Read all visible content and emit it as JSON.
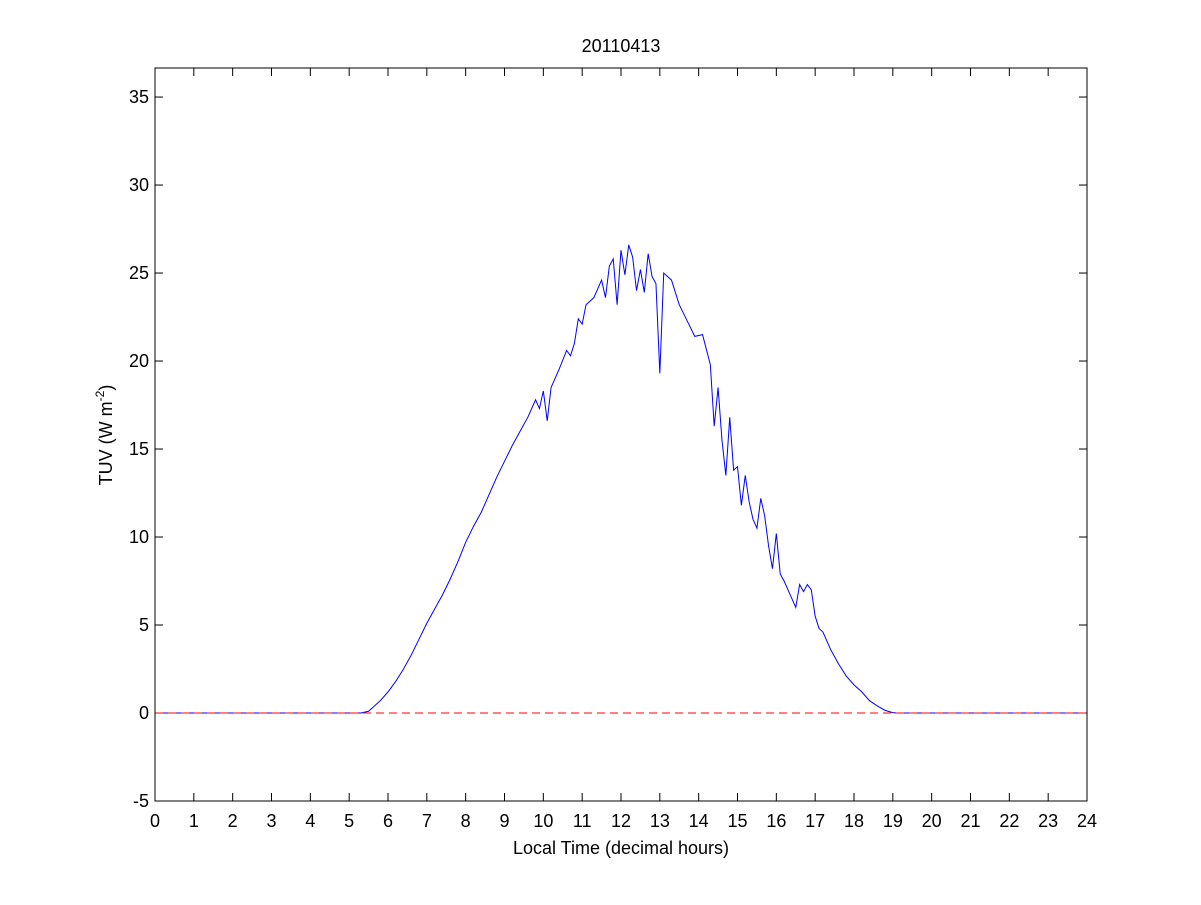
{
  "chart_data": {
    "type": "line",
    "title": "20110413",
    "xlabel": "Local Time (decimal hours)",
    "ylabel": [
      "TUV (W m",
      "-2",
      ")"
    ],
    "xlim": [
      0,
      24
    ],
    "xticks": [
      0,
      1,
      2,
      3,
      4,
      5,
      6,
      7,
      8,
      9,
      10,
      11,
      12,
      13,
      14,
      15,
      16,
      17,
      18,
      19,
      20,
      21,
      22,
      23,
      24
    ],
    "ylim": [
      -5,
      36.65
    ],
    "yticks": [
      -5,
      0,
      5,
      10,
      15,
      20,
      25,
      30,
      35
    ],
    "hline": {
      "value": 0,
      "color": "#ff0000",
      "style": "dashed"
    },
    "series": [
      {
        "color": "#0000ff",
        "x": [
          0,
          5.3,
          5.5,
          5.6,
          5.8,
          6.0,
          6.2,
          6.4,
          6.6,
          6.8,
          7.0,
          7.2,
          7.4,
          7.6,
          7.8,
          8.0,
          8.2,
          8.4,
          8.6,
          8.8,
          9.0,
          9.2,
          9.4,
          9.6,
          9.8,
          9.9,
          10.0,
          10.1,
          10.2,
          10.4,
          10.6,
          10.7,
          10.8,
          10.9,
          11.0,
          11.1,
          11.3,
          11.5,
          11.6,
          11.7,
          11.8,
          11.9,
          12.0,
          12.1,
          12.2,
          12.3,
          12.4,
          12.5,
          12.6,
          12.7,
          12.8,
          12.9,
          13.0,
          13.1,
          13.3,
          13.5,
          13.7,
          13.9,
          14.1,
          14.3,
          14.4,
          14.5,
          14.6,
          14.7,
          14.8,
          14.9,
          15.0,
          15.1,
          15.2,
          15.3,
          15.4,
          15.5,
          15.6,
          15.7,
          15.8,
          15.9,
          16.0,
          16.1,
          16.2,
          16.3,
          16.4,
          16.5,
          16.6,
          16.7,
          16.8,
          16.9,
          17.0,
          17.1,
          17.2,
          17.4,
          17.6,
          17.8,
          18.0,
          18.2,
          18.4,
          18.6,
          18.8,
          19.0,
          19.1,
          24
        ],
        "values": [
          0,
          0,
          0.1,
          0.3,
          0.7,
          1.2,
          1.8,
          2.5,
          3.3,
          4.2,
          5.1,
          5.9,
          6.7,
          7.6,
          8.6,
          9.7,
          10.6,
          11.4,
          12.4,
          13.4,
          14.3,
          15.2,
          16.0,
          16.8,
          17.8,
          17.3,
          18.3,
          16.6,
          18.5,
          19.5,
          20.6,
          20.3,
          21.0,
          22.4,
          22.1,
          23.2,
          23.6,
          24.6,
          23.6,
          25.4,
          25.8,
          23.2,
          26.3,
          24.9,
          26.6,
          25.9,
          24.0,
          25.2,
          23.9,
          26.1,
          24.8,
          24.4,
          19.3,
          25.0,
          24.6,
          23.2,
          22.3,
          21.4,
          21.5,
          19.8,
          16.3,
          18.5,
          15.5,
          13.5,
          16.8,
          13.8,
          14.0,
          11.8,
          13.5,
          12.0,
          11.0,
          10.5,
          12.2,
          11.2,
          9.5,
          8.2,
          10.2,
          7.9,
          7.5,
          7.0,
          6.5,
          6.0,
          7.3,
          6.9,
          7.3,
          7.0,
          5.5,
          4.8,
          4.6,
          3.6,
          2.8,
          2.1,
          1.6,
          1.2,
          0.7,
          0.4,
          0.15,
          0.02,
          0,
          0
        ]
      }
    ]
  }
}
